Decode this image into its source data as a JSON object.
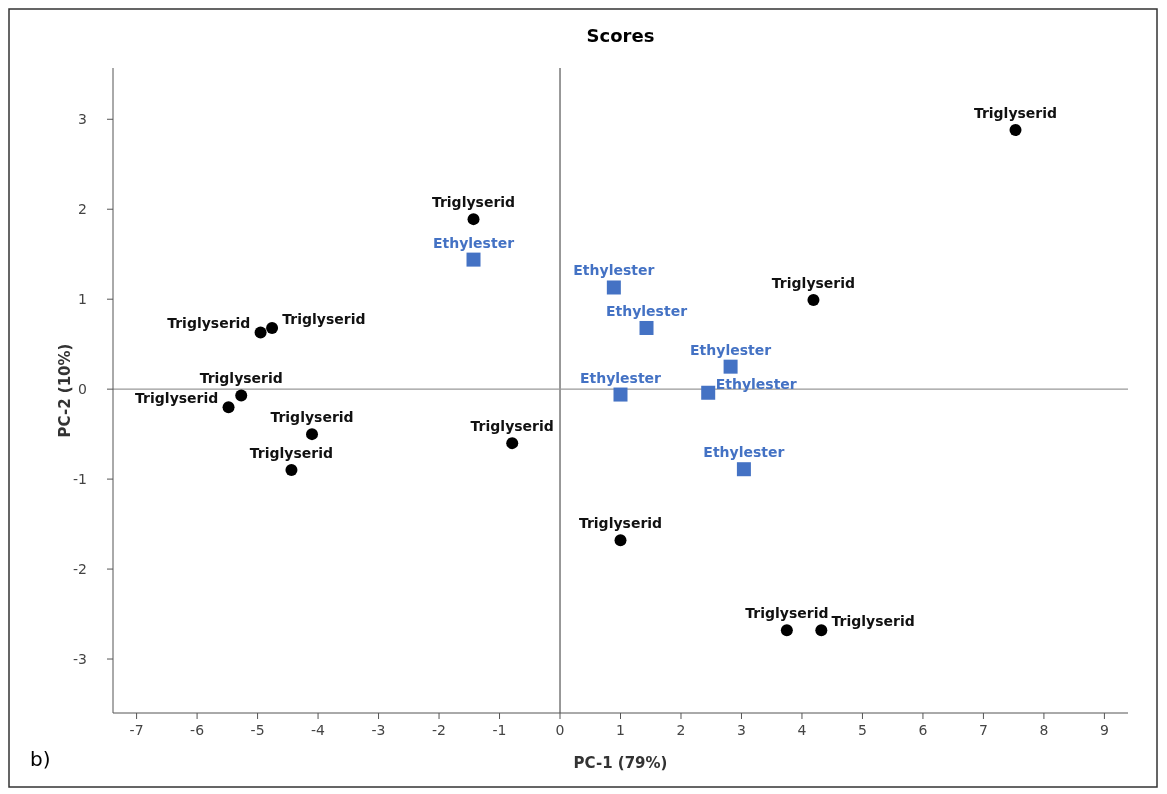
{
  "chart_data": {
    "type": "scatter",
    "title": "Scores",
    "xlabel": "PC-1 (79%)",
    "ylabel": "PC-2 (10%)",
    "xlim": [
      -7.39,
      9.39
    ],
    "ylim": [
      -3.6,
      3.57
    ],
    "xticks": [
      -7,
      -6,
      -5,
      -4,
      -3,
      -2,
      -1,
      0,
      1,
      2,
      3,
      4,
      5,
      6,
      7,
      8,
      9
    ],
    "yticks": [
      -3,
      -2,
      -1,
      0,
      1,
      2,
      3
    ],
    "grid": false,
    "ref_lines": [
      {
        "axis": "x",
        "value": 0,
        "color": "#555555"
      },
      {
        "axis": "y",
        "value": 0,
        "color": "#999999"
      }
    ],
    "annotations": [
      "b)"
    ],
    "series": [
      {
        "color": "#000000",
        "marker": "circle",
        "x": [
          7.53,
          -1.43,
          4.19,
          -4.95,
          -4.76,
          -5.27,
          -5.48,
          -4.1,
          -4.44,
          -0.79,
          1.0,
          3.75,
          4.32
        ],
        "values": [
          2.88,
          1.89,
          0.99,
          0.63,
          0.68,
          -0.07,
          -0.2,
          -0.5,
          -0.9,
          -0.6,
          -1.68,
          -2.68,
          -2.68
        ],
        "value_labels": [
          "Triglyserid",
          "Triglyserid",
          "Triglyserid",
          "Triglyserid",
          "Triglyserid",
          "Triglyserid",
          "Triglyserid",
          "Triglyserid",
          "Triglyserid",
          "Triglyserid",
          "Triglyserid",
          "Triglyserid",
          "Triglyserid"
        ]
      },
      {
        "color": "#4472c4",
        "marker": "square",
        "x": [
          -1.43,
          0.89,
          1.43,
          2.82,
          1.0,
          2.45,
          3.04
        ],
        "values": [
          1.44,
          1.13,
          0.68,
          0.25,
          -0.06,
          -0.04,
          -0.89
        ],
        "value_labels": [
          "Ethylester",
          "Ethylester",
          "Ethylester",
          "Ethylester",
          "Ethylester",
          "Ethylester",
          "Ethylester"
        ]
      }
    ]
  }
}
